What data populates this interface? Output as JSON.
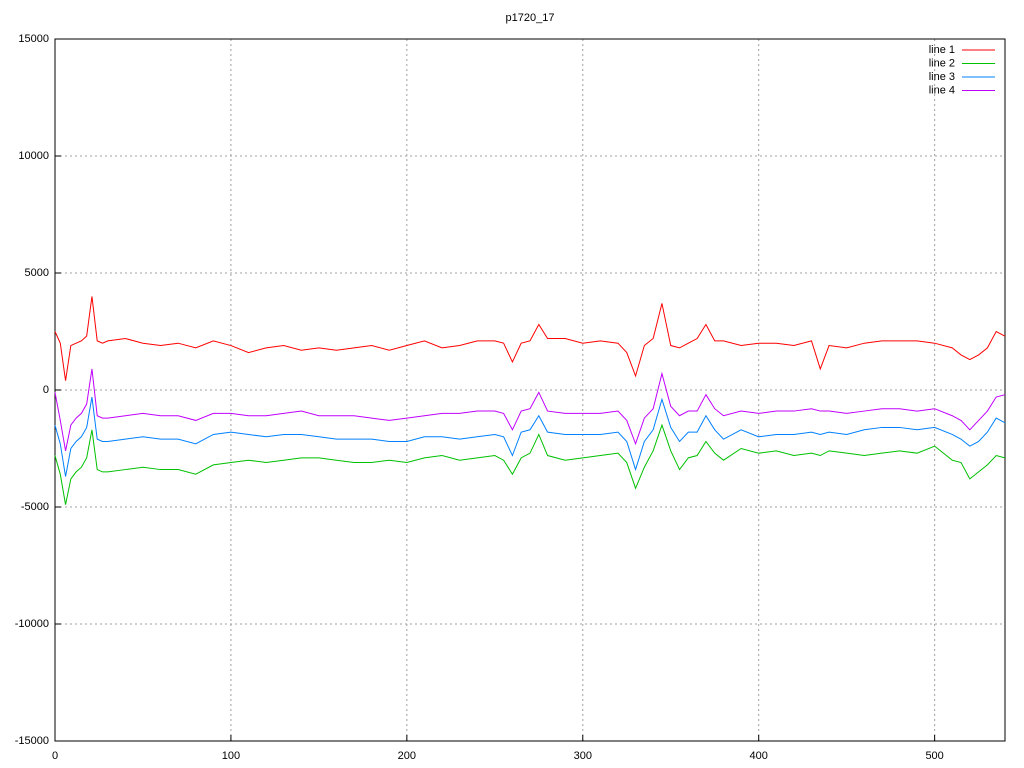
{
  "chart_data": {
    "type": "line",
    "title": "p1720_17",
    "x": [
      0,
      3,
      6,
      9,
      12,
      15,
      18,
      21,
      24,
      27,
      30,
      40,
      50,
      60,
      70,
      80,
      90,
      100,
      110,
      120,
      130,
      140,
      150,
      160,
      170,
      180,
      190,
      200,
      210,
      220,
      230,
      240,
      250,
      255,
      260,
      265,
      270,
      275,
      280,
      290,
      300,
      310,
      320,
      325,
      330,
      335,
      340,
      345,
      350,
      355,
      360,
      365,
      370,
      375,
      380,
      390,
      400,
      410,
      420,
      430,
      435,
      440,
      450,
      460,
      470,
      480,
      490,
      500,
      510,
      515,
      520,
      525,
      530,
      535,
      540
    ],
    "series": [
      {
        "name": "line 1",
        "color": "#ff0000",
        "values": [
          2500,
          2000,
          400,
          1900,
          2000,
          2100,
          2300,
          4000,
          2100,
          2000,
          2100,
          2200,
          2000,
          1900,
          2000,
          1800,
          2100,
          1900,
          1600,
          1800,
          1900,
          1700,
          1800,
          1700,
          1800,
          1900,
          1700,
          1900,
          2100,
          1800,
          1900,
          2100,
          2100,
          2000,
          1200,
          2000,
          2100,
          2800,
          2200,
          2200,
          2000,
          2100,
          2000,
          1600,
          600,
          1900,
          2200,
          3700,
          1900,
          1800,
          2000,
          2200,
          2800,
          2100,
          2100,
          1900,
          2000,
          2000,
          1900,
          2100,
          900,
          1900,
          1800,
          2000,
          2100,
          2100,
          2100,
          2000,
          1800,
          1500,
          1300,
          1500,
          1800,
          2500,
          2300
        ]
      },
      {
        "name": "line 2",
        "color": "#00c000",
        "values": [
          -2800,
          -3600,
          -4900,
          -3800,
          -3500,
          -3300,
          -2900,
          -1700,
          -3400,
          -3500,
          -3500,
          -3400,
          -3300,
          -3400,
          -3400,
          -3600,
          -3200,
          -3100,
          -3000,
          -3100,
          -3000,
          -2900,
          -2900,
          -3000,
          -3100,
          -3100,
          -3000,
          -3100,
          -2900,
          -2800,
          -3000,
          -2900,
          -2800,
          -3000,
          -3600,
          -2900,
          -2700,
          -1900,
          -2800,
          -3000,
          -2900,
          -2800,
          -2700,
          -3100,
          -4200,
          -3300,
          -2600,
          -1500,
          -2600,
          -3400,
          -2900,
          -2800,
          -2200,
          -2700,
          -3000,
          -2500,
          -2700,
          -2600,
          -2800,
          -2700,
          -2800,
          -2600,
          -2700,
          -2800,
          -2700,
          -2600,
          -2700,
          -2400,
          -3000,
          -3100,
          -3800,
          -3500,
          -3200,
          -2800,
          -2900
        ]
      },
      {
        "name": "line 3",
        "color": "#0080ff",
        "values": [
          -1500,
          -2300,
          -3700,
          -2500,
          -2200,
          -2000,
          -1600,
          -300,
          -2100,
          -2200,
          -2200,
          -2100,
          -2000,
          -2100,
          -2100,
          -2300,
          -1900,
          -1800,
          -1900,
          -2000,
          -1900,
          -1900,
          -2000,
          -2100,
          -2100,
          -2100,
          -2200,
          -2200,
          -2000,
          -2000,
          -2100,
          -2000,
          -1900,
          -2000,
          -2800,
          -1800,
          -1700,
          -1100,
          -1800,
          -1900,
          -1900,
          -1900,
          -1800,
          -2200,
          -3400,
          -2200,
          -1700,
          -400,
          -1600,
          -2200,
          -1800,
          -1800,
          -1100,
          -1700,
          -2100,
          -1700,
          -2000,
          -1900,
          -1900,
          -1800,
          -1900,
          -1800,
          -1900,
          -1700,
          -1600,
          -1600,
          -1700,
          -1600,
          -1900,
          -2100,
          -2400,
          -2200,
          -1800,
          -1200,
          -1400
        ]
      },
      {
        "name": "line 4",
        "color": "#c000ff",
        "values": [
          -100,
          -1300,
          -2600,
          -1500,
          -1200,
          -1000,
          -600,
          900,
          -1100,
          -1200,
          -1200,
          -1100,
          -1000,
          -1100,
          -1100,
          -1300,
          -1000,
          -1000,
          -1100,
          -1100,
          -1000,
          -900,
          -1100,
          -1100,
          -1100,
          -1200,
          -1300,
          -1200,
          -1100,
          -1000,
          -1000,
          -900,
          -900,
          -1000,
          -1700,
          -900,
          -800,
          -100,
          -900,
          -1000,
          -1000,
          -1000,
          -900,
          -1300,
          -2300,
          -1200,
          -800,
          700,
          -700,
          -1100,
          -900,
          -900,
          -200,
          -800,
          -1100,
          -900,
          -1000,
          -900,
          -900,
          -800,
          -900,
          -900,
          -1000,
          -900,
          -800,
          -800,
          -900,
          -800,
          -1100,
          -1300,
          -1700,
          -1300,
          -900,
          -300,
          -200
        ]
      }
    ],
    "xlim": [
      0,
      540
    ],
    "xticks": [
      0,
      100,
      200,
      300,
      400,
      500
    ],
    "ylim": [
      -15000,
      15000
    ],
    "yticks": [
      -15000,
      -10000,
      -5000,
      0,
      5000,
      10000,
      15000
    ],
    "grid": true,
    "legend": "top-right"
  }
}
